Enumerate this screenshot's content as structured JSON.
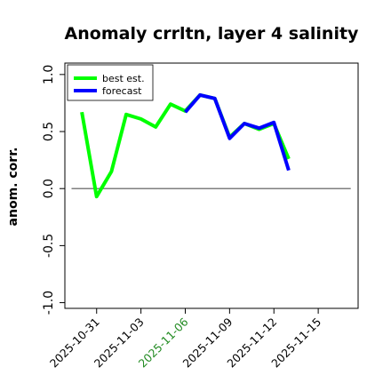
{
  "chart_data": {
    "type": "line",
    "title": "Anomaly crrltn, layer 4 salinity",
    "xlabel": "",
    "ylabel": "anom. corr.",
    "ylim": [
      -1.05,
      1.1
    ],
    "xlim_days": [
      -2.15,
      17.7
    ],
    "x_ticks": [
      {
        "label": "2025-10-31",
        "day": 0,
        "color": "#000000"
      },
      {
        "label": "2025-11-03",
        "day": 3,
        "color": "#000000"
      },
      {
        "label": "2025-11-06",
        "day": 6,
        "color": "#228B22"
      },
      {
        "label": "2025-11-09",
        "day": 9,
        "color": "#000000"
      },
      {
        "label": "2025-11-12",
        "day": 12,
        "color": "#000000"
      },
      {
        "label": "2025-11-15",
        "day": 15,
        "color": "#000000"
      }
    ],
    "y_ticks": [
      -1.0,
      -0.5,
      0.0,
      0.5,
      1.0
    ],
    "y_tick_labels": [
      "-1.0",
      "-0.5",
      "0.0",
      "0.5",
      "1.0"
    ],
    "reference_line": 0.0,
    "grid": false,
    "legend_position": "top-left",
    "series": [
      {
        "name": "best est.",
        "color": "#00ff00",
        "x_days": [
          -1,
          0,
          1,
          2,
          3,
          4,
          5,
          6,
          7,
          8,
          9,
          10,
          11,
          12,
          13
        ],
        "values": [
          0.67,
          -0.07,
          0.15,
          0.65,
          0.61,
          0.54,
          0.74,
          0.68,
          0.82,
          0.79,
          0.45,
          0.57,
          0.52,
          0.57,
          0.26
        ]
      },
      {
        "name": "forecast",
        "color": "#0000ff",
        "x_days": [
          6,
          7,
          8,
          9,
          10,
          11,
          12,
          13
        ],
        "values": [
          0.67,
          0.82,
          0.79,
          0.44,
          0.57,
          0.53,
          0.58,
          0.16
        ]
      }
    ]
  }
}
